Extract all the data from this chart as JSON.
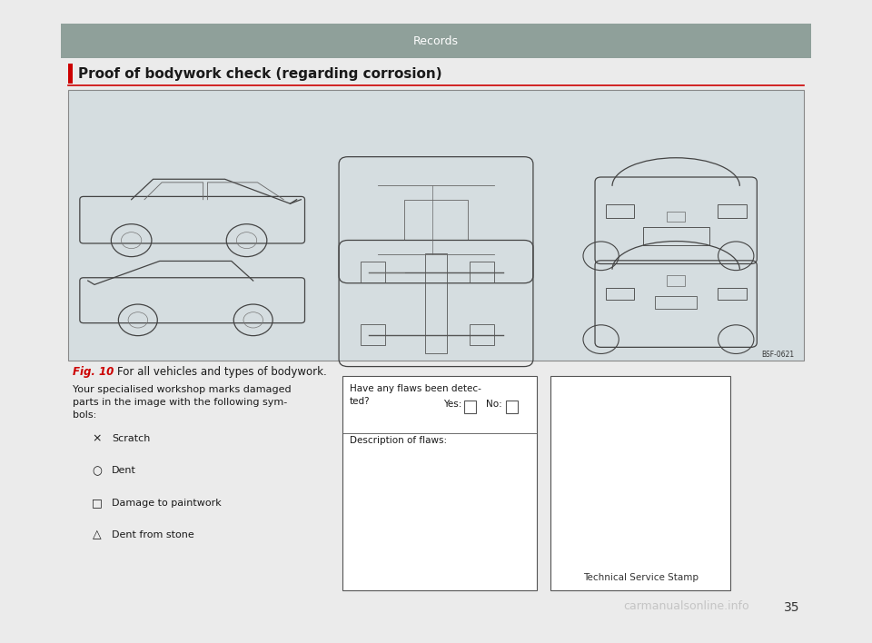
{
  "page_bg": "#ebebeb",
  "content_bg": "#ffffff",
  "header_bar_color": "#8fa09a",
  "header_text": "Records",
  "header_text_color": "#ffffff",
  "section_title": "Proof of bodywork check (regarding corrosion)",
  "section_title_color": "#1a1a1a",
  "section_bar_color": "#cc0000",
  "fig_label": "Fig. 10",
  "fig_label_color": "#cc0000",
  "fig_caption": "  For all vehicles and types of bodywork.",
  "car_diagram_bg": "#d5dde0",
  "car_diagram_border": "#888888",
  "bsf_label": "BSF-0621",
  "body_text": "Your specialised workshop marks damaged\nparts in the image with the following sym-\nbols:",
  "symbols": [
    {
      "sym": "×",
      "label": "Scratch"
    },
    {
      "sym": "○",
      "label": "Dent"
    },
    {
      "sym": "□",
      "label": "Damage to paintwork"
    },
    {
      "sym": "△",
      "label": "Dent from stone"
    }
  ],
  "yes_label": "Yes:",
  "no_label": "No:",
  "desc_label": "Description of flaws:",
  "flaws_question": "Have any flaws been detec-\nted?",
  "stamp_label": "Technical Service Stamp",
  "page_number": "35",
  "watermark": "carmanualsonline.info"
}
